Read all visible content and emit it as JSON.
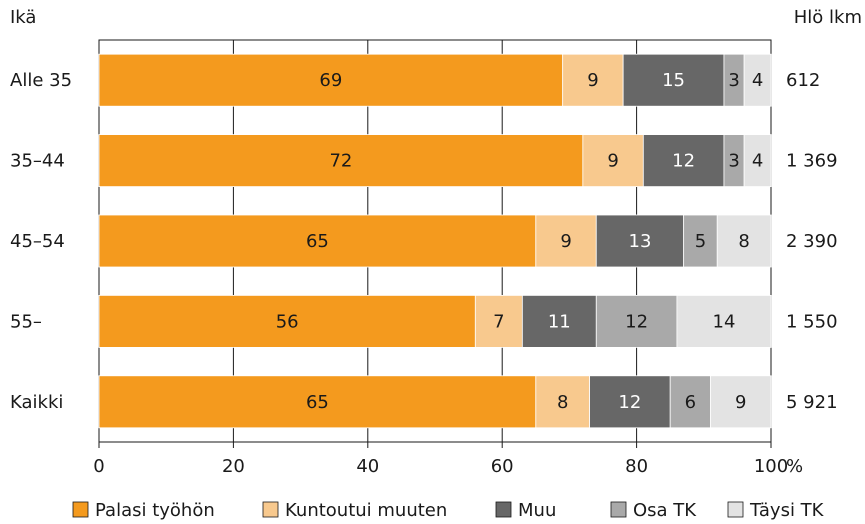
{
  "chart_data": {
    "type": "bar",
    "orientation": "horizontal",
    "stacked": true,
    "ylabel": "Ikä",
    "right_label": "Hlö lkm",
    "xlim": [
      0,
      100
    ],
    "xticks": [
      "0",
      "20",
      "40",
      "60",
      "80",
      "100"
    ],
    "x_unit": "%",
    "categories": [
      "Alle 35",
      "35–44",
      "45–54",
      "55–",
      "Kaikki"
    ],
    "counts": [
      "612",
      "1 369",
      "2 390",
      "1 550",
      "5 921"
    ],
    "series": [
      {
        "name": "Palasi työhön",
        "values": [
          69,
          72,
          65,
          56,
          65
        ],
        "color": "#f49a1e",
        "label_color": "#1a1a1a"
      },
      {
        "name": "Kuntoutui muuten",
        "values": [
          9,
          9,
          9,
          7,
          8
        ],
        "color": "#f8c98e",
        "label_color": "#1a1a1a"
      },
      {
        "name": "Muu",
        "values": [
          15,
          12,
          13,
          11,
          12
        ],
        "color": "#676767",
        "label_color": "#ffffff"
      },
      {
        "name": "Osa TK",
        "values": [
          3,
          3,
          5,
          12,
          6
        ],
        "color": "#a9a9a9",
        "label_color": "#1a1a1a"
      },
      {
        "name": "Täysi TK",
        "values": [
          4,
          4,
          8,
          14,
          9
        ],
        "color": "#e3e3e3",
        "label_color": "#1a1a1a"
      }
    ],
    "grid": "vertical",
    "legend_position": "bottom"
  }
}
